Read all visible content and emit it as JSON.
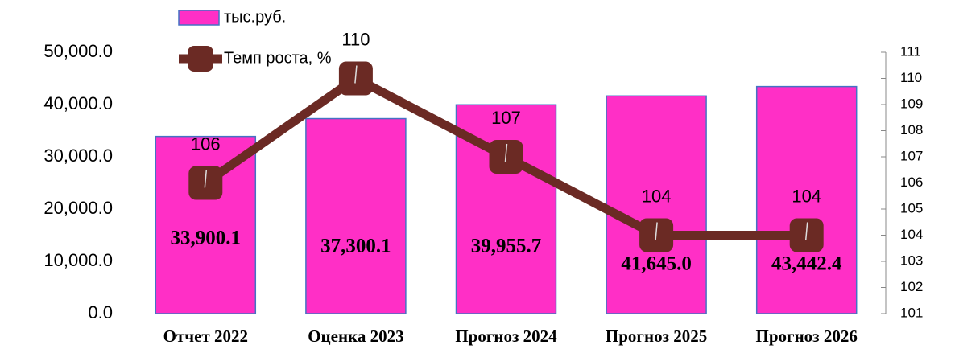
{
  "chart_data": {
    "type": "bar",
    "categories": [
      "Отчет 2022",
      "Оценка 2023",
      "Прогноз 2024",
      "Прогноз 2025",
      "Прогноз 2026"
    ],
    "series": [
      {
        "name": "тыс.руб.",
        "type": "bar",
        "color": "#ff2fc6",
        "values": [
          33900.1,
          37300.1,
          39955.7,
          41645.0,
          43442.4
        ],
        "value_labels": [
          "33,900.1",
          "37,300.1",
          "39,955.7",
          "41,645.0",
          "43,442.4"
        ]
      },
      {
        "name": "Темп роста, %",
        "type": "line",
        "axis": "y2",
        "color": "#6b2a24",
        "values": [
          106,
          110,
          107,
          104,
          104
        ]
      }
    ],
    "ylim": [
      0,
      50000
    ],
    "yticks": [
      {
        "value": 0,
        "label": "0.0"
      },
      {
        "value": 10000,
        "label": "10,000.0"
      },
      {
        "value": 20000,
        "label": "20,000.0"
      },
      {
        "value": 30000,
        "label": "30,000.0"
      },
      {
        "value": 40000,
        "label": "40,000.0"
      },
      {
        "value": 50000,
        "label": "50,000.0"
      }
    ],
    "y2lim": [
      101,
      111
    ],
    "y2ticks": [
      101,
      102,
      103,
      104,
      105,
      106,
      107,
      108,
      109,
      110,
      111
    ],
    "legend": "top"
  }
}
